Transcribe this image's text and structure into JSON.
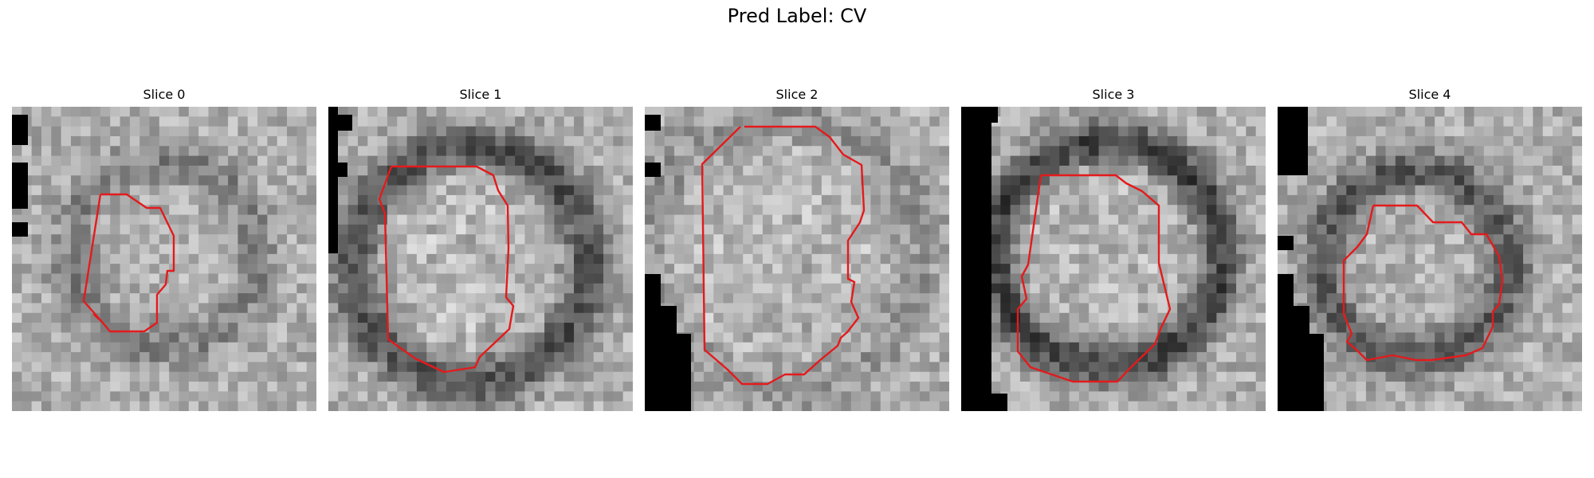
{
  "figure": {
    "title": "Pred Label: CV"
  },
  "panels": [
    {
      "title": "Slice 0",
      "contour_color": "#e41a1c"
    },
    {
      "title": "Slice 1",
      "contour_color": "#e41a1c"
    },
    {
      "title": "Slice 2",
      "contour_color": "#e41a1c"
    },
    {
      "title": "Slice 3",
      "contour_color": "#e41a1c"
    },
    {
      "title": "Slice 4",
      "contour_color": "#e41a1c"
    }
  ]
}
